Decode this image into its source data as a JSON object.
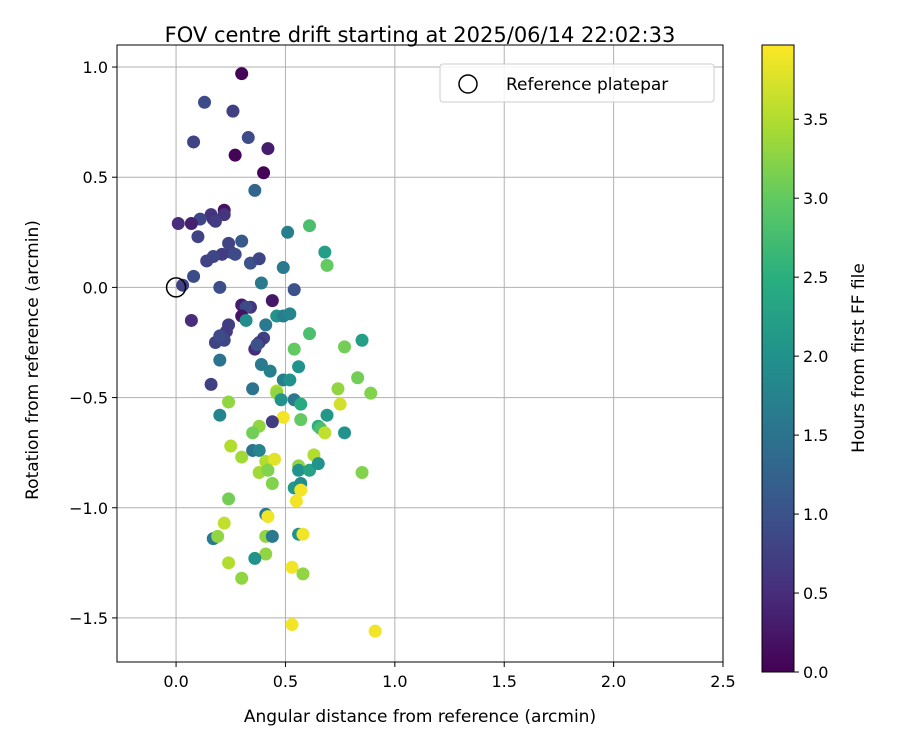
{
  "chart_data": {
    "type": "scatter",
    "title": "FOV centre drift starting at 2025/06/14 22:02:33",
    "xlabel": "Angular distance from reference (arcmin)",
    "ylabel": "Rotation from reference (arcmin)",
    "xlim": [
      -0.27,
      2.5
    ],
    "ylim": [
      -1.7,
      1.1
    ],
    "xticks": [
      "0.0",
      "0.5",
      "1.0",
      "1.5",
      "2.0",
      "2.5"
    ],
    "yticks": [
      "1.0",
      "0.5",
      "0.0",
      "−0.5",
      "−1.0",
      "−1.5"
    ],
    "grid": true,
    "legend": {
      "placement": "top-right",
      "entries": [
        "Reference platepar"
      ]
    },
    "colorbar": {
      "label": "Hours from first FF file",
      "range": [
        0,
        3.97
      ],
      "ticks": [
        "0.0",
        "0.5",
        "1.0",
        "1.5",
        "2.0",
        "2.5",
        "3.0",
        "3.5"
      ],
      "colormap": "viridis"
    },
    "reference_point": {
      "x": 0.0,
      "y": 0.0,
      "name": "Reference platepar"
    },
    "points": [
      {
        "x": 0.3,
        "y": 0.97,
        "h": 0.05
      },
      {
        "x": 0.08,
        "y": 0.66,
        "h": 0.8
      },
      {
        "x": 0.13,
        "y": 0.84,
        "h": 0.9
      },
      {
        "x": 0.26,
        "y": 0.8,
        "h": 0.75
      },
      {
        "x": 0.33,
        "y": 0.68,
        "h": 0.9
      },
      {
        "x": 0.27,
        "y": 0.6,
        "h": 0.05
      },
      {
        "x": 0.42,
        "y": 0.63,
        "h": 0.3
      },
      {
        "x": 0.4,
        "y": 0.52,
        "h": 0.05
      },
      {
        "x": 0.36,
        "y": 0.44,
        "h": 1.3
      },
      {
        "x": 0.22,
        "y": 0.35,
        "h": 0.2
      },
      {
        "x": 0.22,
        "y": 0.33,
        "h": 0.6
      },
      {
        "x": 0.16,
        "y": 0.33,
        "h": 0.6
      },
      {
        "x": 0.17,
        "y": 0.31,
        "h": 0.55
      },
      {
        "x": 0.18,
        "y": 0.3,
        "h": 0.7
      },
      {
        "x": 0.11,
        "y": 0.31,
        "h": 0.85
      },
      {
        "x": 0.01,
        "y": 0.29,
        "h": 0.5
      },
      {
        "x": 0.07,
        "y": 0.29,
        "h": 0.35
      },
      {
        "x": 0.1,
        "y": 0.23,
        "h": 0.8
      },
      {
        "x": 0.24,
        "y": 0.2,
        "h": 0.8
      },
      {
        "x": 0.3,
        "y": 0.21,
        "h": 1.1
      },
      {
        "x": 0.25,
        "y": 0.16,
        "h": 0.8
      },
      {
        "x": 0.27,
        "y": 0.15,
        "h": 0.9
      },
      {
        "x": 0.21,
        "y": 0.15,
        "h": 0.7
      },
      {
        "x": 0.17,
        "y": 0.14,
        "h": 0.85
      },
      {
        "x": 0.14,
        "y": 0.12,
        "h": 0.8
      },
      {
        "x": 0.34,
        "y": 0.11,
        "h": 1.0
      },
      {
        "x": 0.38,
        "y": 0.13,
        "h": 0.85
      },
      {
        "x": 0.08,
        "y": 0.05,
        "h": 0.9
      },
      {
        "x": 0.03,
        "y": 0.01,
        "h": 0.75
      },
      {
        "x": 0.2,
        "y": 0.0,
        "h": 0.95
      },
      {
        "x": 0.39,
        "y": 0.02,
        "h": 1.6
      },
      {
        "x": 0.51,
        "y": 0.25,
        "h": 1.7
      },
      {
        "x": 0.61,
        "y": 0.28,
        "h": 2.8
      },
      {
        "x": 0.68,
        "y": 0.16,
        "h": 2.2
      },
      {
        "x": 0.69,
        "y": 0.1,
        "h": 3.0
      },
      {
        "x": 0.49,
        "y": 0.09,
        "h": 1.6
      },
      {
        "x": 0.54,
        "y": -0.01,
        "h": 1.0
      },
      {
        "x": 0.44,
        "y": -0.06,
        "h": 0.25
      },
      {
        "x": 0.3,
        "y": -0.08,
        "h": 0.3
      },
      {
        "x": 0.34,
        "y": -0.09,
        "h": 0.6
      },
      {
        "x": 0.32,
        "y": -0.09,
        "h": 0.9
      },
      {
        "x": 0.3,
        "y": -0.13,
        "h": 0.2
      },
      {
        "x": 0.32,
        "y": -0.15,
        "h": 1.9
      },
      {
        "x": 0.07,
        "y": -0.15,
        "h": 0.5
      },
      {
        "x": 0.41,
        "y": -0.17,
        "h": 1.6
      },
      {
        "x": 0.24,
        "y": -0.17,
        "h": 0.7
      },
      {
        "x": 0.23,
        "y": -0.2,
        "h": 0.7
      },
      {
        "x": 0.46,
        "y": -0.13,
        "h": 2.0
      },
      {
        "x": 0.49,
        "y": -0.13,
        "h": 1.7
      },
      {
        "x": 0.52,
        "y": -0.12,
        "h": 1.8
      },
      {
        "x": 0.61,
        "y": -0.21,
        "h": 2.8
      },
      {
        "x": 0.4,
        "y": -0.23,
        "h": 0.75
      },
      {
        "x": 0.38,
        "y": -0.25,
        "h": 0.6
      },
      {
        "x": 0.18,
        "y": -0.25,
        "h": 0.8
      },
      {
        "x": 0.22,
        "y": -0.24,
        "h": 0.85
      },
      {
        "x": 0.2,
        "y": -0.22,
        "h": 0.9
      },
      {
        "x": 0.36,
        "y": -0.28,
        "h": 0.5
      },
      {
        "x": 0.37,
        "y": -0.26,
        "h": 1.0
      },
      {
        "x": 0.54,
        "y": -0.28,
        "h": 3.0
      },
      {
        "x": 0.2,
        "y": -0.33,
        "h": 1.5
      },
      {
        "x": 0.39,
        "y": -0.35,
        "h": 1.6
      },
      {
        "x": 0.43,
        "y": -0.38,
        "h": 1.7
      },
      {
        "x": 0.56,
        "y": -0.36,
        "h": 2.0
      },
      {
        "x": 0.49,
        "y": -0.42,
        "h": 1.7
      },
      {
        "x": 0.52,
        "y": -0.42,
        "h": 2.0
      },
      {
        "x": 0.16,
        "y": -0.44,
        "h": 0.75
      },
      {
        "x": 0.35,
        "y": -0.46,
        "h": 1.5
      },
      {
        "x": 0.46,
        "y": -0.47,
        "h": 3.5
      },
      {
        "x": 0.46,
        "y": -0.48,
        "h": 3.3
      },
      {
        "x": 0.48,
        "y": -0.51,
        "h": 2.0
      },
      {
        "x": 0.54,
        "y": -0.51,
        "h": 1.6
      },
      {
        "x": 0.57,
        "y": -0.53,
        "h": 2.4
      },
      {
        "x": 0.24,
        "y": -0.52,
        "h": 3.3
      },
      {
        "x": 0.2,
        "y": -0.58,
        "h": 1.8
      },
      {
        "x": 0.49,
        "y": -0.59,
        "h": 3.9
      },
      {
        "x": 0.57,
        "y": -0.6,
        "h": 3.0
      },
      {
        "x": 0.44,
        "y": -0.61,
        "h": 0.7
      },
      {
        "x": 0.38,
        "y": -0.63,
        "h": 3.3
      },
      {
        "x": 0.35,
        "y": -0.66,
        "h": 3.1
      },
      {
        "x": 0.65,
        "y": -0.63,
        "h": 2.5
      },
      {
        "x": 0.66,
        "y": -0.64,
        "h": 2.8
      },
      {
        "x": 0.68,
        "y": -0.66,
        "h": 3.6
      },
      {
        "x": 0.69,
        "y": -0.58,
        "h": 2.1
      },
      {
        "x": 0.25,
        "y": -0.72,
        "h": 3.5
      },
      {
        "x": 0.35,
        "y": -0.74,
        "h": 1.5
      },
      {
        "x": 0.38,
        "y": -0.74,
        "h": 1.8
      },
      {
        "x": 0.3,
        "y": -0.77,
        "h": 3.4
      },
      {
        "x": 0.41,
        "y": -0.79,
        "h": 3.5
      },
      {
        "x": 0.45,
        "y": -0.78,
        "h": 3.8
      },
      {
        "x": 0.38,
        "y": -0.84,
        "h": 3.4
      },
      {
        "x": 0.42,
        "y": -0.83,
        "h": 3.2
      },
      {
        "x": 0.56,
        "y": -0.81,
        "h": 3.3
      },
      {
        "x": 0.56,
        "y": -0.83,
        "h": 2.0
      },
      {
        "x": 0.61,
        "y": -0.83,
        "h": 2.3
      },
      {
        "x": 0.63,
        "y": -0.76,
        "h": 3.5
      },
      {
        "x": 0.65,
        "y": -0.8,
        "h": 2.0
      },
      {
        "x": 0.44,
        "y": -0.89,
        "h": 3.2
      },
      {
        "x": 0.54,
        "y": -0.91,
        "h": 2.1
      },
      {
        "x": 0.57,
        "y": -0.89,
        "h": 1.9
      },
      {
        "x": 0.57,
        "y": -0.92,
        "h": 3.9
      },
      {
        "x": 0.55,
        "y": -0.97,
        "h": 3.9
      },
      {
        "x": 0.24,
        "y": -0.96,
        "h": 3.1
      },
      {
        "x": 0.41,
        "y": -1.03,
        "h": 1.6
      },
      {
        "x": 0.42,
        "y": -1.04,
        "h": 3.9
      },
      {
        "x": 0.22,
        "y": -1.07,
        "h": 3.6
      },
      {
        "x": 0.41,
        "y": -1.13,
        "h": 3.3
      },
      {
        "x": 0.44,
        "y": -1.13,
        "h": 1.6
      },
      {
        "x": 0.56,
        "y": -1.12,
        "h": 2.0
      },
      {
        "x": 0.58,
        "y": -1.12,
        "h": 3.9
      },
      {
        "x": 0.17,
        "y": -1.14,
        "h": 1.6
      },
      {
        "x": 0.19,
        "y": -1.13,
        "h": 3.3
      },
      {
        "x": 0.41,
        "y": -1.21,
        "h": 3.3
      },
      {
        "x": 0.36,
        "y": -1.23,
        "h": 2.0
      },
      {
        "x": 0.24,
        "y": -1.25,
        "h": 3.5
      },
      {
        "x": 0.53,
        "y": -1.27,
        "h": 3.9
      },
      {
        "x": 0.58,
        "y": -1.3,
        "h": 3.3
      },
      {
        "x": 0.3,
        "y": -1.32,
        "h": 3.3
      },
      {
        "x": 0.77,
        "y": -0.27,
        "h": 3.1
      },
      {
        "x": 0.85,
        "y": -0.24,
        "h": 2.2
      },
      {
        "x": 0.83,
        "y": -0.41,
        "h": 3.1
      },
      {
        "x": 0.74,
        "y": -0.46,
        "h": 3.3
      },
      {
        "x": 0.75,
        "y": -0.53,
        "h": 3.7
      },
      {
        "x": 0.89,
        "y": -0.48,
        "h": 3.2
      },
      {
        "x": 0.77,
        "y": -0.66,
        "h": 2.0
      },
      {
        "x": 0.85,
        "y": -0.84,
        "h": 3.2
      },
      {
        "x": 0.53,
        "y": -1.53,
        "h": 3.9
      },
      {
        "x": 0.91,
        "y": -1.56,
        "h": 3.9
      }
    ]
  }
}
